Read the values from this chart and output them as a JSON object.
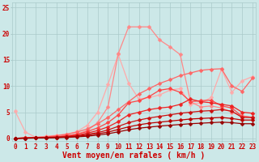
{
  "xlabel": "Vent moyen/en rafales ( km/h )",
  "background_color": "#cce8e8",
  "grid_color": "#aacaca",
  "x_ticks": [
    0,
    1,
    2,
    3,
    4,
    5,
    6,
    7,
    8,
    9,
    10,
    11,
    12,
    13,
    14,
    15,
    16,
    17,
    18,
    19,
    20,
    21,
    22,
    23
  ],
  "ylim": [
    -0.5,
    26
  ],
  "xlim": [
    -0.3,
    23.3
  ],
  "lines": [
    {
      "x": [
        0,
        1,
        2,
        3,
        4,
        5,
        6,
        7,
        8,
        9,
        10,
        11,
        12,
        13,
        14,
        15,
        16,
        17,
        18,
        19,
        20,
        21,
        22,
        23
      ],
      "y": [
        5.2,
        1.2,
        0.2,
        0.4,
        0.6,
        0.8,
        1.3,
        2.5,
        5.0,
        10.3,
        16.0,
        10.5,
        7.5,
        7.8,
        8.3,
        9.2,
        9.5,
        6.5,
        6.8,
        7.8,
        13.2,
        8.8,
        11.0,
        11.8
      ],
      "color": "#ffaaaa",
      "marker": "D",
      "markersize": 2.5,
      "linewidth": 0.9
    },
    {
      "x": [
        0,
        1,
        2,
        3,
        4,
        5,
        6,
        7,
        8,
        9,
        10,
        11,
        12,
        13,
        14,
        15,
        16,
        17,
        18,
        19,
        20,
        21,
        22,
        23
      ],
      "y": [
        0.0,
        0.1,
        0.1,
        0.2,
        0.3,
        0.5,
        0.8,
        1.5,
        3.0,
        6.0,
        16.2,
        21.3,
        21.3,
        21.3,
        18.8,
        17.5,
        16.0,
        7.0,
        6.0,
        6.2,
        5.8,
        5.0,
        4.3,
        4.0
      ],
      "color": "#ff8888",
      "marker": "D",
      "markersize": 2.5,
      "linewidth": 0.9
    },
    {
      "x": [
        0,
        1,
        2,
        3,
        4,
        5,
        6,
        7,
        8,
        9,
        10,
        11,
        12,
        13,
        14,
        15,
        16,
        17,
        18,
        19,
        20,
        21,
        22,
        23
      ],
      "y": [
        0.0,
        0.1,
        0.2,
        0.3,
        0.5,
        0.8,
        1.2,
        1.8,
        2.8,
        4.0,
        5.5,
        7.0,
        8.5,
        9.5,
        10.5,
        11.2,
        12.0,
        12.5,
        13.0,
        13.2,
        13.3,
        10.0,
        9.0,
        11.5
      ],
      "color": "#ff6666",
      "marker": "D",
      "markersize": 2.5,
      "linewidth": 0.9
    },
    {
      "x": [
        0,
        1,
        2,
        3,
        4,
        5,
        6,
        7,
        8,
        9,
        10,
        11,
        12,
        13,
        14,
        15,
        16,
        17,
        18,
        19,
        20,
        21,
        22,
        23
      ],
      "y": [
        0.0,
        0.1,
        0.1,
        0.2,
        0.3,
        0.5,
        0.8,
        1.3,
        2.0,
        3.0,
        4.5,
        6.8,
        7.2,
        8.0,
        9.2,
        9.5,
        8.8,
        7.0,
        7.2,
        7.3,
        6.2,
        5.8,
        4.2,
        4.0
      ],
      "color": "#ff4444",
      "marker": "D",
      "markersize": 2.5,
      "linewidth": 0.9
    },
    {
      "x": [
        0,
        1,
        2,
        3,
        4,
        5,
        6,
        7,
        8,
        9,
        10,
        11,
        12,
        13,
        14,
        15,
        16,
        17,
        18,
        19,
        20,
        21,
        22,
        23
      ],
      "y": [
        0.0,
        0.1,
        0.1,
        0.2,
        0.3,
        0.4,
        0.6,
        1.0,
        1.5,
        2.2,
        3.2,
        4.5,
        5.0,
        5.5,
        5.8,
        6.0,
        6.5,
        7.5,
        7.0,
        6.8,
        6.5,
        6.2,
        5.0,
        4.8
      ],
      "color": "#ee2222",
      "marker": "D",
      "markersize": 2.5,
      "linewidth": 0.9
    },
    {
      "x": [
        0,
        1,
        2,
        3,
        4,
        5,
        6,
        7,
        8,
        9,
        10,
        11,
        12,
        13,
        14,
        15,
        16,
        17,
        18,
        19,
        20,
        21,
        22,
        23
      ],
      "y": [
        0.0,
        0.05,
        0.1,
        0.15,
        0.2,
        0.3,
        0.5,
        0.8,
        1.1,
        1.6,
        2.3,
        3.0,
        3.5,
        3.9,
        4.2,
        4.5,
        4.8,
        5.0,
        5.2,
        5.3,
        5.5,
        5.2,
        4.0,
        4.0
      ],
      "color": "#cc1111",
      "marker": "D",
      "markersize": 2.5,
      "linewidth": 0.9
    },
    {
      "x": [
        0,
        1,
        2,
        3,
        4,
        5,
        6,
        7,
        8,
        9,
        10,
        11,
        12,
        13,
        14,
        15,
        16,
        17,
        18,
        19,
        20,
        21,
        22,
        23
      ],
      "y": [
        0.0,
        0.05,
        0.08,
        0.12,
        0.18,
        0.25,
        0.4,
        0.6,
        0.88,
        1.2,
        1.7,
        2.2,
        2.6,
        2.9,
        3.1,
        3.3,
        3.5,
        3.7,
        3.8,
        3.9,
        4.0,
        3.8,
        3.5,
        3.5
      ],
      "color": "#bb0000",
      "marker": "D",
      "markersize": 2.5,
      "linewidth": 0.9
    },
    {
      "x": [
        0,
        1,
        2,
        3,
        4,
        5,
        6,
        7,
        8,
        9,
        10,
        11,
        12,
        13,
        14,
        15,
        16,
        17,
        18,
        19,
        20,
        21,
        22,
        23
      ],
      "y": [
        0.0,
        0.03,
        0.06,
        0.09,
        0.13,
        0.18,
        0.28,
        0.42,
        0.62,
        0.88,
        1.25,
        1.65,
        1.95,
        2.15,
        2.35,
        2.5,
        2.65,
        2.8,
        2.9,
        3.0,
        3.1,
        3.0,
        2.8,
        2.8
      ],
      "color": "#990000",
      "marker": "D",
      "markersize": 2.5,
      "linewidth": 0.9
    }
  ],
  "tick_fontsize": 5.5,
  "label_fontsize": 7,
  "yticks": [
    0,
    5,
    10,
    15,
    20,
    25
  ],
  "tick_color": "#cc0000",
  "label_color": "#cc0000"
}
